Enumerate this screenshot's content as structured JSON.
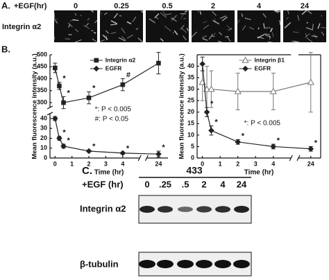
{
  "panel_a": {
    "label": "A.",
    "treatment": "+EGF(hr)",
    "times": [
      "0",
      "0.25",
      "0.5",
      "2",
      "4",
      "24"
    ],
    "row_label": "Integrin α2"
  },
  "panel_b_label": "B.",
  "chart_data": [
    {
      "type": "line",
      "y_label": "Mean fluorescence intensity (a.u.)",
      "x_label": "Time (hr)",
      "xlim": [
        -0.3,
        24.4
      ],
      "xbreak": [
        5,
        23.5
      ],
      "xticks": [
        0,
        1,
        2,
        3,
        4,
        24
      ],
      "ylim": [
        0,
        500
      ],
      "ybreak": [
        45,
        280
      ],
      "yticks": [
        0,
        10,
        20,
        30,
        40,
        300,
        350,
        400,
        450,
        500
      ],
      "x": [
        0,
        0.25,
        0.5,
        2,
        4,
        24
      ],
      "series": [
        {
          "name": "Integrin α2",
          "color": "#222222",
          "marker": "square",
          "values": [
            445,
            370,
            300,
            320,
            375,
            465
          ],
          "errors": [
            20,
            15,
            25,
            25,
            25,
            45
          ],
          "sig": [
            null,
            "*",
            "*",
            "*",
            "#",
            null
          ]
        },
        {
          "name": "EGFR",
          "color": "#222222",
          "marker": "diamond",
          "values": [
            40,
            20,
            12,
            7,
            5,
            4
          ],
          "errors": [
            2,
            2,
            2,
            1,
            1,
            3
          ],
          "sig": [
            null,
            "*",
            "*",
            "*",
            "*",
            "*"
          ]
        }
      ],
      "notes": [
        "*: P < 0.005",
        "#: P < 0.05"
      ],
      "legend": "top",
      "frame": false
    },
    {
      "type": "line",
      "y_label": "Mean fluorescence intensity (a.u.)",
      "x_label": "Time (hr)",
      "xlim": [
        -0.3,
        24.4
      ],
      "xbreak": [
        5,
        23.5
      ],
      "xticks": [
        0,
        1,
        2,
        3,
        4,
        24
      ],
      "ylim": [
        0,
        45
      ],
      "yticks": [
        0,
        5,
        10,
        15,
        20,
        25,
        30,
        35,
        40
      ],
      "x": [
        0,
        0.25,
        0.5,
        2,
        4,
        24
      ],
      "series": [
        {
          "name": "Integrin β1",
          "color": "#777777",
          "marker": "triangle",
          "values": [
            33,
            30,
            30,
            29,
            29,
            33
          ],
          "errors": [
            8,
            10,
            8,
            8,
            8,
            13
          ],
          "sig": [
            null,
            null,
            null,
            null,
            null,
            null
          ]
        },
        {
          "name": "EGFR",
          "color": "#222222",
          "marker": "diamond",
          "values": [
            41,
            20,
            12,
            7,
            5,
            4
          ],
          "errors": [
            3,
            2,
            2,
            1,
            1,
            1
          ],
          "sig": [
            null,
            "*",
            "*",
            "*",
            "*",
            "*"
          ]
        }
      ],
      "notes": [
        "*: P < 0.005"
      ],
      "legend": "top",
      "frame": true
    }
  ],
  "panel_c": {
    "label": "C.",
    "cell_line": "433",
    "treatment": "+EGF (hr)",
    "lanes": [
      "0",
      ".25",
      ".5",
      "2",
      "4",
      "24"
    ],
    "rows": [
      "Integrin α2",
      "β-tubulin"
    ]
  }
}
